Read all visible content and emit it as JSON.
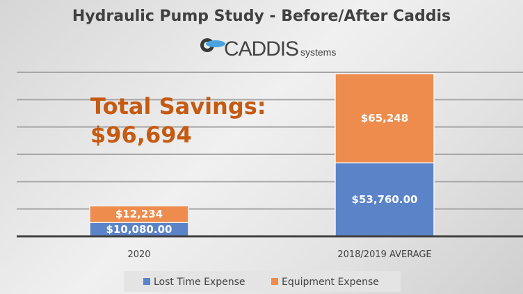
{
  "chart_data": {
    "type": "bar",
    "stacked": true,
    "title": "Hydraulic Pump Study - Before/After Caddis",
    "logo_text": "CADDIS systems",
    "annotation": [
      "Total Savings:",
      "$96,694"
    ],
    "categories": [
      "2020",
      "2018/2019 AVERAGE"
    ],
    "series": [
      {
        "name": "Lost Time Expense",
        "values": [
          10080,
          53760
        ],
        "labels": [
          "$10,080.00",
          "$53,760.00"
        ],
        "color": "#5b83c8"
      },
      {
        "name": "Equipment Expense",
        "values": [
          12234,
          65248
        ],
        "labels": [
          "$12,234",
          "$65,248"
        ],
        "color": "#ed8c4c"
      }
    ],
    "ylim": [
      0,
      120000
    ],
    "ytick_step": 20000,
    "grid": true,
    "legend_position": "bottom",
    "annotation_color": "#c55a11"
  }
}
